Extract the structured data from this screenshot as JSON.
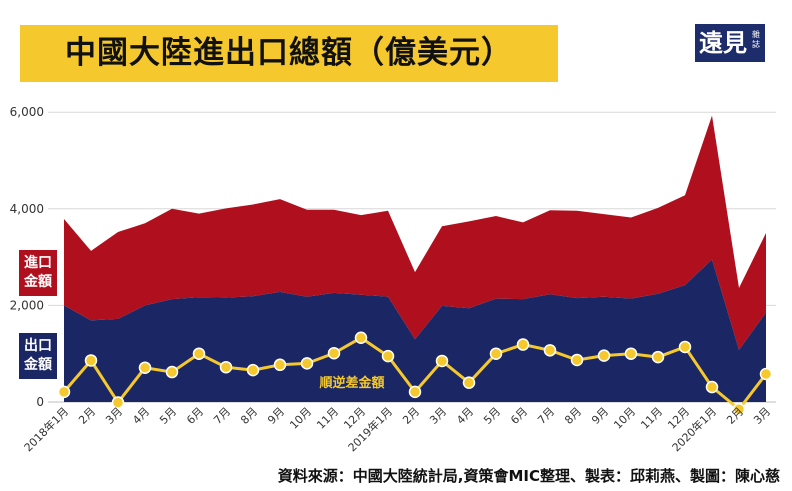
{
  "title": "中國大陸進出口總額（億美元）",
  "logo": {
    "main": "遠見",
    "sub": "雜誌"
  },
  "legend": {
    "import_line1": "進口",
    "import_line2": "金額",
    "export_line1": "出口",
    "export_line2": "金額",
    "balance": "順逆差金額"
  },
  "source": "資料來源：中國大陸統計局,資策會MIC整理、製表：邱莉燕、製圖：陳心慈",
  "colors": {
    "import": "#b0101e",
    "export": "#1b2664",
    "balance": "#f5c92d",
    "title_bg": "#f5c92d",
    "logo_bg": "#1d2c6b"
  },
  "chart_data": {
    "type": "area",
    "title": "中國大陸進出口總額（億美元）",
    "categories": [
      "2018年1月",
      "2月",
      "3月",
      "4月",
      "5月",
      "6月",
      "7月",
      "8月",
      "9月",
      "10月",
      "11月",
      "12月",
      "2019年1月",
      "2月",
      "3月",
      "4月",
      "5月",
      "6月",
      "7月",
      "8月",
      "9月",
      "10月",
      "11月",
      "12月",
      "2020年1月",
      "2月",
      "3月"
    ],
    "ylim": [
      -200,
      6000
    ],
    "yticks": [
      0,
      2000,
      4000,
      6000
    ],
    "ytick_labels": [
      "0",
      "2,000",
      "4,000",
      "6,000"
    ],
    "grid": true,
    "series": [
      {
        "name": "進口金額",
        "style": "stacked-area",
        "values": [
          1790,
          1440,
          1800,
          1700,
          1870,
          1730,
          1850,
          1900,
          1920,
          1800,
          1720,
          1650,
          1780,
          1390,
          1650,
          1800,
          1710,
          1590,
          1740,
          1810,
          1710,
          1680,
          1780,
          1860,
          2980,
          1280,
          1650
        ]
      },
      {
        "name": "出口金額",
        "style": "area",
        "values": [
          2000,
          1690,
          1720,
          2000,
          2130,
          2170,
          2160,
          2190,
          2280,
          2180,
          2260,
          2220,
          2180,
          1300,
          1990,
          1940,
          2140,
          2130,
          2230,
          2150,
          2180,
          2140,
          2240,
          2420,
          2950,
          1080,
          1850
        ]
      },
      {
        "name": "順逆差金額",
        "style": "line",
        "values": [
          210,
          860,
          -10,
          710,
          620,
          1000,
          720,
          660,
          770,
          800,
          1010,
          1330,
          950,
          210,
          850,
          400,
          1000,
          1190,
          1070,
          870,
          960,
          1000,
          930,
          1140,
          310,
          -150,
          580
        ]
      }
    ]
  }
}
